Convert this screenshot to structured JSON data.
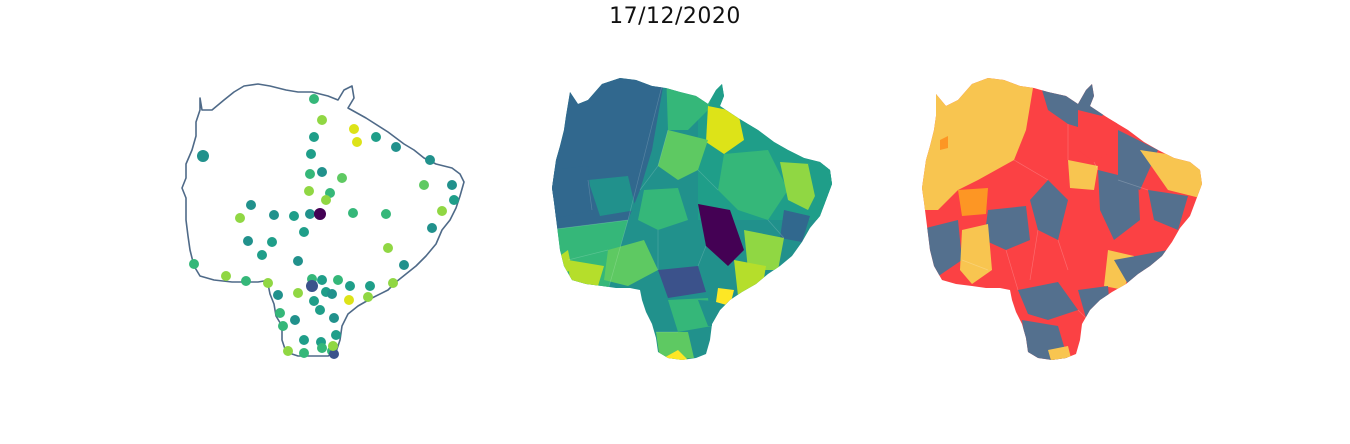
{
  "title": "17/12/2020",
  "colors": {
    "outline": "#4f6a88",
    "viridis": [
      "#440154",
      "#3b528b",
      "#31688e",
      "#21918c",
      "#1f9e89",
      "#35b779",
      "#5ec962",
      "#90d743",
      "#b5de2b",
      "#dde318",
      "#fde725"
    ],
    "categorical": {
      "red": "#fb4144",
      "slate": "#54708e",
      "yellow": "#f8c550",
      "orange": "#fd9624"
    }
  },
  "maps": [
    {
      "type": "point-map",
      "marker": "circle",
      "colormap": "viridis"
    },
    {
      "type": "choropleth",
      "colormap": "viridis"
    },
    {
      "type": "choropleth",
      "colormap": "categorical",
      "categories": [
        "red",
        "slate",
        "yellow",
        "orange"
      ]
    }
  ]
}
